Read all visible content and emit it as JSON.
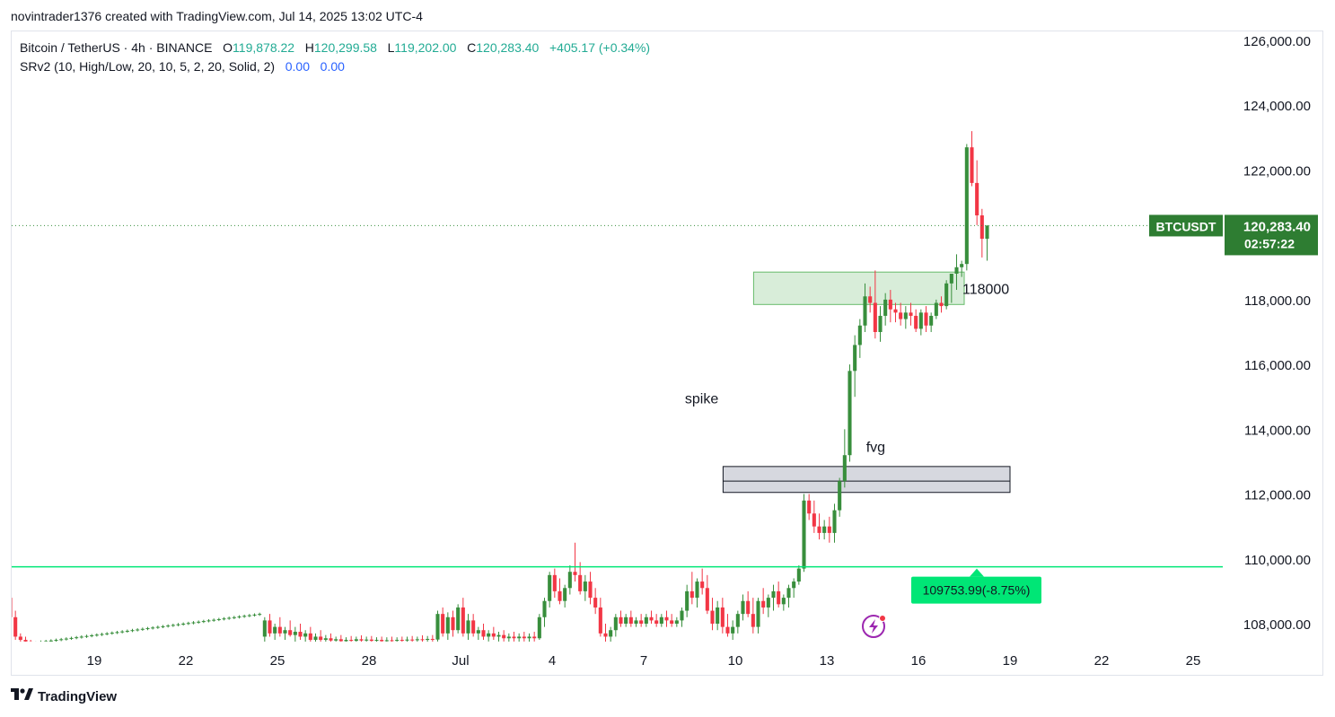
{
  "header": {
    "attribution": "novintrader1376 created with TradingView.com, Jul 14, 2025 13:02 UTC-4"
  },
  "legend": {
    "symbol": "Bitcoin / TetherUS · 4h · BINANCE",
    "o_label": "O",
    "o_value": "119,878.22",
    "h_label": "H",
    "h_value": "120,299.58",
    "l_label": "L",
    "l_value": "119,202.00",
    "c_label": "C",
    "c_value": "120,283.40",
    "change": "+405.17 (+0.34%)",
    "indicator": "SRv2 (10, High/Low, 20, 10, 5, 2, 20, Solid, 2)",
    "ind_val1": "0.00",
    "ind_val2": "0.00"
  },
  "footer": {
    "logo_icon": "tradingview-logo-icon",
    "brand": "TradingView"
  },
  "colors": {
    "up": "#388e3c",
    "down": "#f23645",
    "support_line": "#00e676",
    "badge_green": "#22ab94",
    "price_badge": "#2e7d32",
    "zone_green": "#c8e6c9",
    "zone_gray": "#d1d4dc"
  },
  "chart_data": {
    "type": "candlestick",
    "symbol": "BTCUSDT",
    "timeframe": "4h",
    "ylim": [
      107450,
      126700
    ],
    "y_ticks": [
      126000,
      124000,
      122000,
      120000,
      118000,
      116000,
      114000,
      112000,
      110000,
      108000
    ],
    "y_tick_labels": [
      "126,000.00",
      "124,000.00",
      "122,000.00",
      "",
      "118,000.00",
      "116,000.00",
      "114,000.00",
      "112,000.00",
      "110,000.00",
      "108,000.00"
    ],
    "x_tick_labels": [
      "19",
      "22",
      "25",
      "28",
      "Jul",
      "4",
      "7",
      "10",
      "13",
      "16",
      "19",
      "22",
      "25"
    ],
    "x_tick_day_index": [
      1,
      4,
      7,
      10,
      13,
      16,
      19,
      22,
      25,
      28,
      31,
      34,
      37
    ],
    "current_price": {
      "symbol": "BTCUSDT",
      "price": "120,283.40",
      "countdown": "02:57:22",
      "value": 120283.4
    },
    "support": {
      "value": 109753.99,
      "label": "109753.99(-8.75%)"
    },
    "zones": [
      {
        "name": "resistance-zone",
        "label": "118000",
        "from_day": 22.6,
        "to_day": 29.5,
        "low": 117850,
        "high": 118850
      },
      {
        "name": "fvg-zone",
        "label": "fvg",
        "from_day": 21.6,
        "to_day": 31.0,
        "low": 112050,
        "high": 112850,
        "mid": 112400
      }
    ],
    "annotations": [
      {
        "name": "spike-label",
        "text": "spike",
        "day": 20.9,
        "price": 114800
      },
      {
        "name": "fvg-label",
        "text": "fvg",
        "day": 26.6,
        "price": 113300
      }
    ],
    "candles_start_day": -1.75,
    "candles_per_day": 6,
    "candles": [
      [
        108800,
        108900,
        107700,
        108200
      ],
      [
        108200,
        108400,
        107500,
        107600
      ],
      [
        107600,
        107700,
        107400,
        107500
      ],
      [
        107500,
        107600,
        107400,
        107450
      ],
      [
        107450,
        107500,
        107350,
        107400
      ],
      [
        107400,
        107450,
        107350,
        107420
      ],
      [
        107420,
        107480,
        107380,
        107440
      ],
      [
        107440,
        107500,
        107400,
        107460
      ],
      [
        107460,
        107520,
        107420,
        107480
      ],
      [
        107480,
        107540,
        107440,
        107500
      ],
      [
        107500,
        107560,
        107460,
        107520
      ],
      [
        107520,
        107580,
        107480,
        107540
      ],
      [
        107540,
        107600,
        107500,
        107560
      ],
      [
        107560,
        107620,
        107520,
        107580
      ],
      [
        107580,
        107640,
        107540,
        107600
      ],
      [
        107600,
        107660,
        107560,
        107620
      ],
      [
        107620,
        107680,
        107580,
        107640
      ],
      [
        107640,
        107700,
        107600,
        107660
      ],
      [
        107660,
        107720,
        107620,
        107680
      ],
      [
        107680,
        107740,
        107640,
        107700
      ],
      [
        107700,
        107760,
        107660,
        107720
      ],
      [
        107720,
        107780,
        107680,
        107740
      ],
      [
        107740,
        107800,
        107700,
        107760
      ],
      [
        107760,
        107820,
        107720,
        107780
      ],
      [
        107780,
        107840,
        107740,
        107800
      ],
      [
        107800,
        107860,
        107760,
        107820
      ],
      [
        107820,
        107880,
        107780,
        107840
      ],
      [
        107840,
        107900,
        107800,
        107860
      ],
      [
        107860,
        107920,
        107820,
        107880
      ],
      [
        107880,
        107940,
        107840,
        107900
      ],
      [
        107900,
        107960,
        107860,
        107920
      ],
      [
        107920,
        107980,
        107880,
        107940
      ],
      [
        107940,
        108000,
        107900,
        107960
      ],
      [
        107960,
        108020,
        107920,
        107980
      ],
      [
        107980,
        108040,
        107940,
        108000
      ],
      [
        108000,
        108060,
        107960,
        108020
      ],
      [
        108020,
        108080,
        107980,
        108040
      ],
      [
        108040,
        108100,
        108000,
        108060
      ],
      [
        108060,
        108120,
        108020,
        108080
      ],
      [
        108080,
        108140,
        108040,
        108100
      ],
      [
        108100,
        108160,
        108060,
        108120
      ],
      [
        108120,
        108180,
        108080,
        108140
      ],
      [
        108140,
        108200,
        108100,
        108160
      ],
      [
        108160,
        108220,
        108120,
        108180
      ],
      [
        108180,
        108240,
        108140,
        108200
      ],
      [
        108200,
        108260,
        108160,
        108220
      ],
      [
        108220,
        108280,
        108180,
        108240
      ],
      [
        108240,
        108300,
        108200,
        108260
      ],
      [
        108260,
        108320,
        108220,
        108280
      ],
      [
        108280,
        108340,
        108240,
        108300
      ],
      [
        107600,
        108200,
        107400,
        108100
      ],
      [
        108100,
        108300,
        107600,
        107700
      ],
      [
        107700,
        108000,
        107500,
        107900
      ],
      [
        107900,
        108200,
        107600,
        107700
      ],
      [
        107700,
        107900,
        107500,
        107800
      ],
      [
        107800,
        108100,
        107600,
        107650
      ],
      [
        107650,
        107900,
        107400,
        107750
      ],
      [
        107750,
        108000,
        107500,
        107600
      ],
      [
        107600,
        107800,
        107400,
        107700
      ],
      [
        107700,
        107900,
        107400,
        107500
      ],
      [
        107500,
        107700,
        107350,
        107600
      ],
      [
        107600,
        107800,
        107400,
        107500
      ],
      [
        107500,
        107650,
        107380,
        107550
      ],
      [
        107550,
        107700,
        107400,
        107480
      ],
      [
        107480,
        107600,
        107380,
        107520
      ],
      [
        107520,
        107650,
        107400,
        107460
      ],
      [
        107460,
        107580,
        107380,
        107500
      ],
      [
        107500,
        107620,
        107400,
        107470
      ],
      [
        107470,
        107600,
        107380,
        107520
      ],
      [
        107520,
        107640,
        107400,
        107480
      ],
      [
        107480,
        107600,
        107380,
        107510
      ],
      [
        107510,
        107620,
        107400,
        107470
      ],
      [
        107470,
        107580,
        107380,
        107500
      ],
      [
        107500,
        107600,
        107400,
        107460
      ],
      [
        107460,
        107580,
        107380,
        107490
      ],
      [
        107490,
        107600,
        107400,
        107470
      ],
      [
        107470,
        107580,
        107380,
        107500
      ],
      [
        107500,
        107600,
        107400,
        107480
      ],
      [
        107480,
        107600,
        107380,
        107510
      ],
      [
        107510,
        107620,
        107400,
        107490
      ],
      [
        107490,
        107600,
        107380,
        107520
      ],
      [
        107520,
        107640,
        107400,
        107500
      ],
      [
        107500,
        107620,
        107400,
        107530
      ],
      [
        107530,
        107650,
        107420,
        107510
      ],
      [
        107510,
        108400,
        107450,
        108300
      ],
      [
        108300,
        108500,
        107600,
        107700
      ],
      [
        107700,
        108350,
        107500,
        108200
      ],
      [
        108200,
        108400,
        107600,
        107800
      ],
      [
        107800,
        108600,
        107700,
        108500
      ],
      [
        108500,
        108800,
        107600,
        107700
      ],
      [
        107700,
        108300,
        107500,
        108100
      ],
      [
        108100,
        108300,
        107600,
        107700
      ],
      [
        107700,
        107900,
        107500,
        107800
      ],
      [
        107800,
        108000,
        107500,
        107600
      ],
      [
        107600,
        107800,
        107450,
        107700
      ],
      [
        107700,
        107900,
        107500,
        107600
      ],
      [
        107600,
        107750,
        107450,
        107650
      ],
      [
        107650,
        107800,
        107450,
        107550
      ],
      [
        107550,
        107700,
        107400,
        107600
      ],
      [
        107600,
        107750,
        107450,
        107550
      ],
      [
        107550,
        107700,
        107400,
        107600
      ],
      [
        107600,
        107750,
        107450,
        107550
      ],
      [
        107550,
        107700,
        107400,
        107600
      ],
      [
        107600,
        107750,
        107450,
        107550
      ],
      [
        107550,
        108300,
        107500,
        108200
      ],
      [
        108200,
        108800,
        107900,
        108700
      ],
      [
        108700,
        109600,
        108500,
        109500
      ],
      [
        109500,
        109700,
        108800,
        109000
      ],
      [
        109000,
        109400,
        108600,
        108700
      ],
      [
        108700,
        109200,
        108500,
        109100
      ],
      [
        109100,
        109800,
        108900,
        109600
      ],
      [
        109600,
        110500,
        109300,
        109500
      ],
      [
        109500,
        109900,
        108900,
        109000
      ],
      [
        109000,
        109500,
        108700,
        109300
      ],
      [
        109300,
        109600,
        108600,
        108800
      ],
      [
        108800,
        109100,
        108300,
        108500
      ],
      [
        108500,
        108800,
        107600,
        107700
      ],
      [
        107700,
        108000,
        107400,
        107600
      ],
      [
        107600,
        107900,
        107400,
        107800
      ],
      [
        107800,
        108300,
        107600,
        108200
      ],
      [
        108200,
        108400,
        107900,
        108000
      ],
      [
        108000,
        108300,
        107900,
        108200
      ],
      [
        108200,
        108400,
        107900,
        108000
      ],
      [
        108000,
        108200,
        107900,
        108100
      ],
      [
        108100,
        108300,
        107900,
        108000
      ],
      [
        108000,
        108300,
        107900,
        108200
      ],
      [
        108200,
        108400,
        108000,
        108100
      ],
      [
        108100,
        108300,
        107900,
        108000
      ],
      [
        108000,
        108300,
        107900,
        108200
      ],
      [
        108200,
        108400,
        107900,
        108100
      ],
      [
        108100,
        108300,
        107900,
        108000
      ],
      [
        108000,
        108200,
        107900,
        108100
      ],
      [
        108100,
        108500,
        107900,
        108400
      ],
      [
        108400,
        109200,
        108200,
        109000
      ],
      [
        109000,
        109600,
        108600,
        108800
      ],
      [
        108800,
        109400,
        108500,
        109300
      ],
      [
        109300,
        109700,
        108900,
        109100
      ],
      [
        109100,
        109500,
        108300,
        108400
      ],
      [
        108400,
        108800,
        107800,
        108000
      ],
      [
        108000,
        108700,
        107800,
        108500
      ],
      [
        108500,
        108800,
        107700,
        107900
      ],
      [
        107900,
        108300,
        107600,
        107700
      ],
      [
        107700,
        108100,
        107500,
        107900
      ],
      [
        107900,
        108400,
        107700,
        108300
      ],
      [
        108300,
        108900,
        108100,
        108700
      ],
      [
        108700,
        109000,
        108200,
        108300
      ],
      [
        108300,
        108800,
        107700,
        107900
      ],
      [
        107900,
        108800,
        107700,
        108700
      ],
      [
        108700,
        109100,
        108300,
        108500
      ],
      [
        108500,
        108900,
        108200,
        108800
      ],
      [
        108800,
        109200,
        108400,
        109000
      ],
      [
        109000,
        109300,
        108500,
        108600
      ],
      [
        108600,
        108900,
        108400,
        108800
      ],
      [
        108800,
        109200,
        108500,
        109100
      ],
      [
        109100,
        109400,
        108800,
        109300
      ],
      [
        109300,
        109800,
        109200,
        109700
      ],
      [
        109700,
        112000,
        109600,
        111800
      ],
      [
        111800,
        112000,
        111200,
        111400
      ],
      [
        111400,
        111800,
        110800,
        111000
      ],
      [
        111000,
        111400,
        110600,
        110800
      ],
      [
        110800,
        111200,
        110600,
        111000
      ],
      [
        111000,
        111300,
        110500,
        110800
      ],
      [
        110800,
        111700,
        110500,
        111500
      ],
      [
        111500,
        112500,
        111300,
        112400
      ],
      [
        112400,
        114000,
        112200,
        113200
      ],
      [
        113200,
        116000,
        113000,
        115800
      ],
      [
        115800,
        116900,
        115000,
        116600
      ],
      [
        116600,
        117400,
        116200,
        117200
      ],
      [
        117200,
        118500,
        117000,
        118100
      ],
      [
        118100,
        118400,
        117600,
        117900
      ],
      [
        117900,
        118900,
        116800,
        117000
      ],
      [
        117000,
        117800,
        116700,
        117500
      ],
      [
        117500,
        118200,
        117200,
        118000
      ],
      [
        118000,
        118300,
        117300,
        117700
      ],
      [
        117700,
        117900,
        117300,
        117600
      ],
      [
        117600,
        117900,
        117200,
        117400
      ],
      [
        117400,
        117800,
        117100,
        117600
      ],
      [
        117600,
        117900,
        117200,
        117500
      ],
      [
        117500,
        117700,
        117000,
        117100
      ],
      [
        117100,
        117700,
        116900,
        117600
      ],
      [
        117600,
        117800,
        117000,
        117200
      ],
      [
        117200,
        117600,
        117000,
        117500
      ],
      [
        117500,
        118000,
        117400,
        117900
      ],
      [
        117900,
        118100,
        117600,
        117800
      ],
      [
        117800,
        118600,
        117700,
        118500
      ],
      [
        118500,
        118800,
        117900,
        118800
      ],
      [
        118800,
        119400,
        118300,
        119000
      ],
      [
        119000,
        119200,
        118700,
        119100
      ],
      [
        119100,
        122800,
        118900,
        122700
      ],
      [
        122700,
        123200,
        121500,
        121600
      ],
      [
        121600,
        122300,
        120300,
        120600
      ],
      [
        120600,
        120800,
        119300,
        119878
      ],
      [
        119878,
        120300,
        119202,
        120283
      ]
    ]
  }
}
